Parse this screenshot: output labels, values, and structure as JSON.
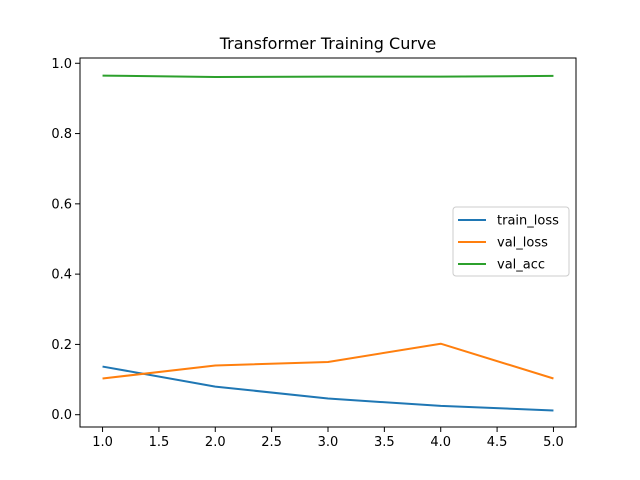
{
  "chart_data": {
    "type": "line",
    "title": "Transformer Training Curve",
    "xlabel": "",
    "ylabel": "",
    "xlim": [
      0.8,
      5.2
    ],
    "ylim": [
      -0.035,
      1.015
    ],
    "x_ticks": [
      1.0,
      1.5,
      2.0,
      2.5,
      3.0,
      3.5,
      4.0,
      4.5,
      5.0
    ],
    "x_tick_labels": [
      "1.0",
      "1.5",
      "2.0",
      "2.5",
      "3.0",
      "3.5",
      "4.0",
      "4.5",
      "5.0"
    ],
    "y_ticks": [
      0.0,
      0.2,
      0.4,
      0.6,
      0.8,
      1.0
    ],
    "y_tick_labels": [
      "0.0",
      "0.2",
      "0.4",
      "0.6",
      "0.8",
      "1.0"
    ],
    "x": [
      1,
      2,
      3,
      4,
      5
    ],
    "grid": false,
    "legend_position": "center-right",
    "series": [
      {
        "name": "train_loss",
        "color": "#1f77b4",
        "values": [
          0.137,
          0.08,
          0.046,
          0.025,
          0.012
        ]
      },
      {
        "name": "val_loss",
        "color": "#ff7f0e",
        "values": [
          0.103,
          0.14,
          0.15,
          0.202,
          0.103
        ]
      },
      {
        "name": "val_acc",
        "color": "#2ca02c",
        "values": [
          0.965,
          0.961,
          0.962,
          0.962,
          0.964
        ]
      }
    ]
  }
}
